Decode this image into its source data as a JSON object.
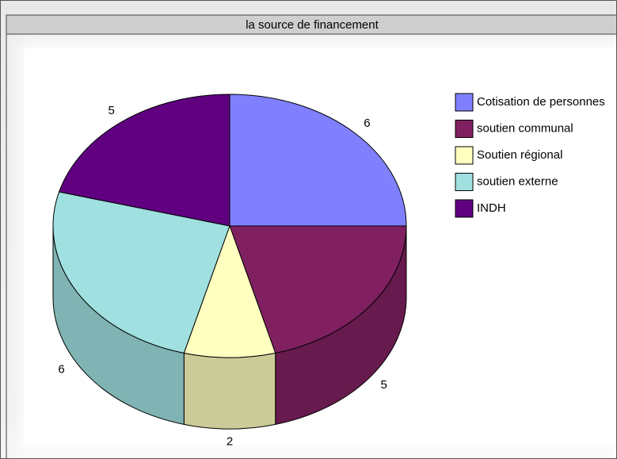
{
  "chart_data": {
    "type": "pie",
    "title": "la source de financement",
    "categories": [
      "Cotisation de personnes",
      "soutien communal",
      "Soutien régional",
      "soutien externe",
      "INDH"
    ],
    "values": [
      6,
      5,
      2,
      6,
      5
    ],
    "colors": [
      "#8080ff",
      "#802060",
      "#ffffc0",
      "#a0e0e0",
      "#600080"
    ],
    "side_colors": [
      "#6666cc",
      "#661a4d",
      "#cccc99",
      "#80b3b3",
      "#4d0066"
    ],
    "legend": "right"
  }
}
